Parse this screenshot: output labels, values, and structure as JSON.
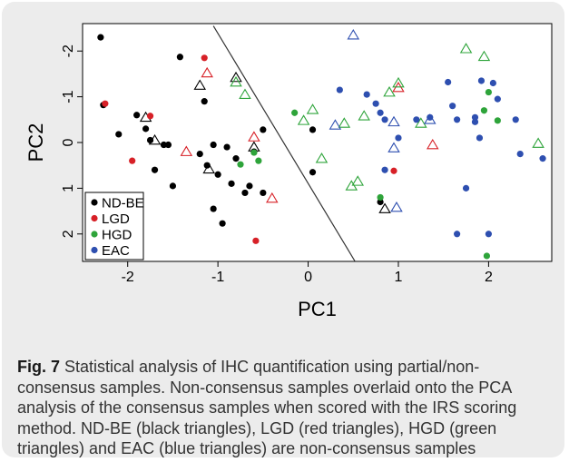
{
  "caption": {
    "label": "Fig. 7",
    "text": " Statistical analysis of IHC quantification using partial/non-consensus samples. Non-consensus samples overlaid onto the PCA analysis of the consensus samples when scored with the IRS scoring method. ND-BE (black triangles), LGD (red triangles), HGD (green triangles) and EAC (blue triangles) are non-consensus samples"
  },
  "chart_data": {
    "type": "scatter",
    "xlabel": "PC1",
    "ylabel": "PC2",
    "xlim": [
      -2.5,
      2.7
    ],
    "ylim": [
      2.6,
      -2.6
    ],
    "x_ticks": [
      -2,
      -1,
      0,
      1,
      2
    ],
    "y_ticks": [
      -2,
      -1,
      0,
      1,
      2
    ],
    "x_tick_labels": [
      "-2",
      "-1",
      "0",
      "1",
      "2"
    ],
    "y_tick_labels": [
      "-2",
      "-1",
      "0",
      "1",
      "2"
    ],
    "legend_position": "bottom-left",
    "grid": false,
    "divider_line": {
      "from": [
        -1.05,
        -2.55
      ],
      "to": [
        0.52,
        2.6
      ]
    },
    "series": [
      {
        "name": "ND-BE",
        "color": "#000000",
        "consensus": [
          [
            -2.3,
            -2.3
          ],
          [
            -2.27,
            -0.82
          ],
          [
            -2.1,
            -0.18
          ],
          [
            -1.9,
            -0.6
          ],
          [
            -1.8,
            -0.3
          ],
          [
            -1.75,
            -0.05
          ],
          [
            -1.7,
            0.6
          ],
          [
            -1.6,
            0.05
          ],
          [
            -1.55,
            0.05
          ],
          [
            -1.5,
            0.95
          ],
          [
            -1.42,
            -1.87
          ],
          [
            -1.2,
            0.25
          ],
          [
            -1.15,
            -0.9
          ],
          [
            -1.12,
            0.5
          ],
          [
            -1.05,
            0.05
          ],
          [
            -1.05,
            1.45
          ],
          [
            -1.0,
            0.7
          ],
          [
            -0.95,
            1.77
          ],
          [
            -0.9,
            0.1
          ],
          [
            -0.85,
            0.9
          ],
          [
            -0.8,
            0.35
          ],
          [
            -0.7,
            1.1
          ],
          [
            -0.65,
            0.95
          ],
          [
            -0.6,
            0.2
          ],
          [
            -0.5,
            -0.28
          ],
          [
            -0.5,
            1.1
          ],
          [
            0.05,
            -0.28
          ],
          [
            0.05,
            0.65
          ],
          [
            0.8,
            1.3
          ]
        ],
        "non_consensus": [
          [
            -1.8,
            -0.55
          ],
          [
            -1.7,
            -0.05
          ],
          [
            -1.2,
            -1.25
          ],
          [
            -1.1,
            0.58
          ],
          [
            -0.8,
            -1.42
          ],
          [
            -0.6,
            0.1
          ],
          [
            0.85,
            1.45
          ]
        ]
      },
      {
        "name": "LGD",
        "color": "#d72027",
        "consensus": [
          [
            -2.25,
            -0.85
          ],
          [
            -1.75,
            -0.58
          ],
          [
            -1.95,
            0.4
          ],
          [
            -1.15,
            -1.85
          ],
          [
            -0.58,
            2.15
          ],
          [
            0.95,
            0.62
          ]
        ],
        "non_consensus": [
          [
            -1.12,
            -1.52
          ],
          [
            -1.35,
            0.2
          ],
          [
            -0.6,
            -0.12
          ],
          [
            -0.4,
            1.22
          ],
          [
            1.0,
            -1.2
          ],
          [
            1.38,
            0.05
          ]
        ]
      },
      {
        "name": "HGD",
        "color": "#2ea43a",
        "consensus": [
          [
            -0.75,
            0.48
          ],
          [
            -0.6,
            0.22
          ],
          [
            -0.55,
            0.4
          ],
          [
            -0.15,
            -0.65
          ],
          [
            0.8,
            1.2
          ],
          [
            1.95,
            -0.7
          ],
          [
            2.0,
            -1.1
          ],
          [
            2.1,
            -0.48
          ],
          [
            1.98,
            2.48
          ]
        ],
        "non_consensus": [
          [
            -0.8,
            -1.32
          ],
          [
            -0.7,
            -1.05
          ],
          [
            -0.05,
            -0.48
          ],
          [
            0.05,
            -0.72
          ],
          [
            0.15,
            0.35
          ],
          [
            0.4,
            -0.42
          ],
          [
            0.48,
            0.95
          ],
          [
            0.55,
            0.85
          ],
          [
            0.62,
            -0.58
          ],
          [
            0.9,
            -1.1
          ],
          [
            1.0,
            -1.3
          ],
          [
            1.25,
            -0.42
          ],
          [
            1.75,
            -2.05
          ],
          [
            1.95,
            -1.88
          ],
          [
            2.55,
            0.02
          ]
        ]
      },
      {
        "name": "EAC",
        "color": "#2e4fb0",
        "consensus": [
          [
            0.35,
            -1.15
          ],
          [
            0.65,
            -1.05
          ],
          [
            0.75,
            -0.85
          ],
          [
            0.8,
            -0.65
          ],
          [
            0.85,
            -0.5
          ],
          [
            0.85,
            0.6
          ],
          [
            1.0,
            -0.1
          ],
          [
            1.2,
            -0.5
          ],
          [
            1.35,
            -0.55
          ],
          [
            1.55,
            -1.32
          ],
          [
            1.6,
            -0.8
          ],
          [
            1.65,
            -0.5
          ],
          [
            1.75,
            1.0
          ],
          [
            1.85,
            -0.55
          ],
          [
            1.85,
            -0.45
          ],
          [
            1.9,
            -0.1
          ],
          [
            1.92,
            -1.35
          ],
          [
            2.0,
            2.0
          ],
          [
            2.05,
            -1.3
          ],
          [
            2.1,
            -0.95
          ],
          [
            2.3,
            -0.5
          ],
          [
            2.35,
            0.25
          ],
          [
            2.6,
            0.35
          ],
          [
            1.65,
            2.0
          ]
        ],
        "non_consensus": [
          [
            0.5,
            -2.35
          ],
          [
            0.3,
            -0.38
          ],
          [
            0.95,
            -0.45
          ],
          [
            0.95,
            0.12
          ],
          [
            0.98,
            1.42
          ],
          [
            1.35,
            -0.5
          ]
        ]
      }
    ]
  }
}
